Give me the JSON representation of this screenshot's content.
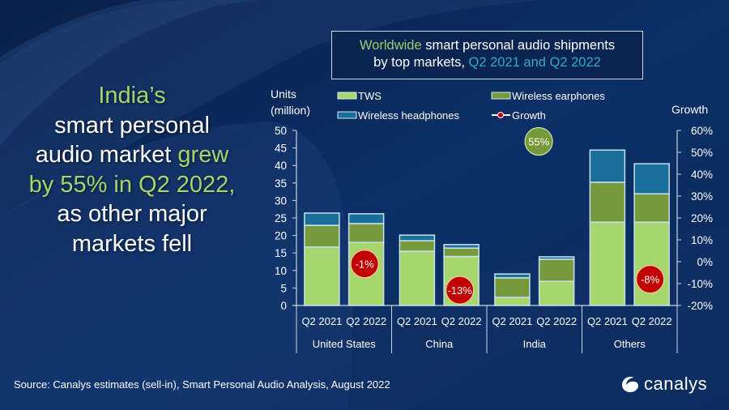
{
  "headline": {
    "line1": "India’s",
    "line2": "smart personal",
    "line3_white": "audio market ",
    "line3_green": "grew",
    "line4": "by 55% in Q2 2022,",
    "line5": "as other major",
    "line6": "markets fell"
  },
  "title": {
    "part1_green": "Worldwide",
    "part1_white": " smart personal audio shipments",
    "part2_white": "by top markets, ",
    "part2_teal": "Q2 2021 and Q2 2022"
  },
  "source": "Source: Canalys estimates (sell-in), Smart Personal Audio Analysis, August 2022",
  "logo": {
    "text": "canalys",
    "icon": "canalys-logo-icon"
  },
  "colors": {
    "tws": "#a6d66c",
    "earphones": "#76993b",
    "headphones": "#1a6e9a",
    "growth_positive": "#76993b",
    "growth_negative": "#c00000",
    "bar_outline": "#c9e0ee",
    "axis": "#c9d6e6"
  },
  "chart_data": {
    "type": "bar",
    "stacked": true,
    "title": "Worldwide smart personal audio shipments by top markets, Q2 2021 and Q2 2022",
    "ylabel": "Units (million)",
    "y2label": "Growth",
    "ylim": [
      0,
      50
    ],
    "y_ticks": [
      "0",
      "5",
      "10",
      "15",
      "20",
      "25",
      "30",
      "35",
      "40",
      "45",
      "50"
    ],
    "y2lim": [
      -20,
      60
    ],
    "y2_ticks": [
      "-20%",
      "-10%",
      "0%",
      "10%",
      "20%",
      "30%",
      "40%",
      "50%",
      "60%"
    ],
    "groups": [
      "United States",
      "China",
      "India",
      "Others"
    ],
    "categories": [
      "Q2 2021",
      "Q2 2022",
      "Q2 2021",
      "Q2 2022",
      "Q2 2021",
      "Q2 2022",
      "Q2 2021",
      "Q2 2022"
    ],
    "series": [
      {
        "name": "TWS",
        "values": [
          16.7,
          18.0,
          15.5,
          14.0,
          2.3,
          6.9,
          23.8,
          23.8
        ]
      },
      {
        "name": "Wireless earphones",
        "values": [
          6.2,
          5.4,
          3.0,
          2.4,
          5.6,
          6.3,
          11.4,
          8.1
        ]
      },
      {
        "name": "Wireless headphones",
        "values": [
          3.5,
          2.8,
          1.6,
          1.0,
          1.1,
          0.7,
          9.2,
          8.6
        ]
      }
    ],
    "growth": {
      "name": "Growth",
      "values": [
        {
          "group": "United States",
          "value": -1,
          "label": "-1%"
        },
        {
          "group": "China",
          "value": -13,
          "label": "-13%"
        },
        {
          "group": "India",
          "value": 55,
          "label": "55%"
        },
        {
          "group": "Others",
          "value": -8,
          "label": "-8%"
        }
      ]
    },
    "legend": {
      "placement": "top",
      "items": [
        {
          "name": "TWS",
          "kind": "box"
        },
        {
          "name": "Wireless earphones",
          "kind": "box"
        },
        {
          "name": "Wireless headphones",
          "kind": "box"
        },
        {
          "name": "Growth",
          "kind": "line-marker"
        }
      ]
    },
    "units_label_line1": "Units",
    "units_label_line2": "(million)",
    "growth_axis_label": "Growth",
    "grid": false
  }
}
